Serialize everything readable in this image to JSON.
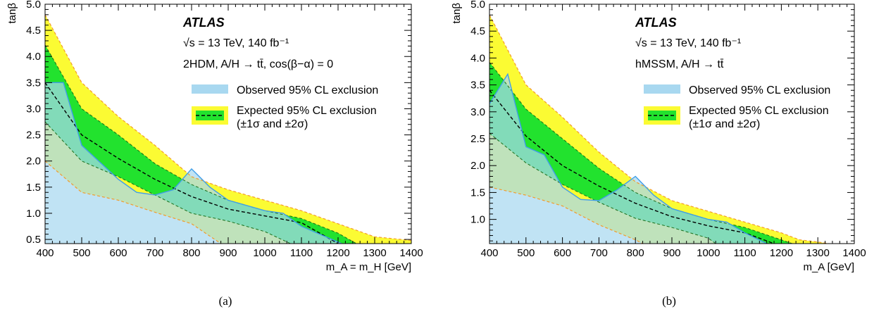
{
  "colors": {
    "observed": "#a8d8f0",
    "observed_line": "#3f9ee8",
    "sigma1": "#22e22e",
    "sigma2": "#fbfb33",
    "sigma2_edge": "#f39a2c",
    "expected_line": "#000000"
  },
  "chart_data": [
    {
      "type": "area",
      "panel_label": "(a)",
      "ylabel": "tanβ",
      "xlabel": "m_A = m_H [GeV]",
      "xlim": [
        400,
        1400
      ],
      "ylim": [
        0.42,
        5.0
      ],
      "xticks": [
        400,
        500,
        600,
        700,
        800,
        900,
        1000,
        1100,
        1200,
        1300,
        1400
      ],
      "yticks": [
        0.5,
        1.0,
        1.5,
        2.0,
        2.5,
        3.0,
        3.5,
        4.0,
        4.5,
        5.0
      ],
      "experiment": "ATLAS",
      "energy_text": "√s = 13 TeV, 140 fb⁻¹",
      "model_text": "2HDM, A/H → tt̄, cos(β−α) = 0",
      "legend": [
        "Observed 95% CL exclusion",
        "Expected 95% CL exclusion",
        "(±1σ and ±2σ)"
      ],
      "plus2sigma": {
        "x": [
          400,
          500,
          600,
          700,
          800,
          900,
          1000,
          1100,
          1200,
          1300,
          1400
        ],
        "y": [
          4.8,
          3.5,
          2.85,
          2.3,
          1.7,
          1.45,
          1.25,
          1.05,
          0.8,
          0.55,
          0.48
        ]
      },
      "plus1sigma": {
        "x": [
          400,
          500,
          600,
          700,
          800,
          900,
          1000,
          1100,
          1200,
          1250
        ],
        "y": [
          4.22,
          3.0,
          2.5,
          1.95,
          1.55,
          1.25,
          1.05,
          0.9,
          0.62,
          0.42
        ]
      },
      "expected": {
        "x": [
          400,
          500,
          600,
          700,
          800,
          900,
          1000,
          1100,
          1200
        ],
        "y": [
          3.5,
          2.5,
          2.05,
          1.65,
          1.32,
          1.08,
          0.95,
          0.82,
          0.42
        ]
      },
      "minus1sigma": {
        "x": [
          400,
          500,
          600,
          700,
          800,
          900,
          1000,
          1070
        ],
        "y": [
          2.75,
          2.0,
          1.7,
          1.35,
          1.0,
          0.85,
          0.65,
          0.42
        ]
      },
      "minus2sigma": {
        "x": [
          400,
          500,
          600,
          700,
          800,
          880
        ],
        "y": [
          2.0,
          1.4,
          1.25,
          1.02,
          0.8,
          0.42
        ]
      },
      "observed": {
        "x": [
          400,
          450,
          500,
          600,
          650,
          700,
          750,
          800,
          850,
          900,
          1000,
          1050,
          1100,
          1150,
          1210
        ],
        "y": [
          3.5,
          3.5,
          2.3,
          1.65,
          1.4,
          1.35,
          1.45,
          1.85,
          1.5,
          1.25,
          1.05,
          1.0,
          0.75,
          0.6,
          0.42
        ]
      }
    },
    {
      "type": "area",
      "panel_label": "(b)",
      "ylabel": "tanβ",
      "xlabel": "m_A [GeV]",
      "xlim": [
        400,
        1400
      ],
      "ylim": [
        0.55,
        5.0
      ],
      "xticks": [
        400,
        500,
        600,
        700,
        800,
        900,
        1000,
        1100,
        1200,
        1300,
        1400
      ],
      "yticks": [
        1.0,
        1.5,
        2.0,
        2.5,
        3.0,
        3.5,
        4.0,
        4.5,
        5.0
      ],
      "experiment": "ATLAS",
      "energy_text": "√s = 13 TeV, 140 fb⁻¹",
      "model_text": "hMSSM, A/H → tt̄",
      "legend": [
        "Observed 95% CL exclusion",
        "Expected 95% CL exclusion",
        "(±1σ and ±2σ)"
      ],
      "plus2sigma": {
        "x": [
          400,
          500,
          600,
          700,
          800,
          900,
          1000,
          1100,
          1200,
          1250,
          1300,
          1330
        ],
        "y": [
          4.8,
          3.5,
          2.9,
          2.25,
          1.7,
          1.35,
          1.15,
          0.95,
          0.75,
          0.62,
          0.58,
          0.55
        ]
      },
      "plus1sigma": {
        "x": [
          400,
          500,
          600,
          700,
          800,
          900,
          1000,
          1100,
          1200,
          1230
        ],
        "y": [
          3.92,
          3.05,
          2.5,
          1.95,
          1.5,
          1.2,
          1.0,
          0.85,
          0.62,
          0.55
        ]
      },
      "expected": {
        "x": [
          400,
          500,
          600,
          700,
          800,
          900,
          1000,
          1100,
          1180
        ],
        "y": [
          3.4,
          2.55,
          2.0,
          1.62,
          1.3,
          1.05,
          0.88,
          0.75,
          0.55
        ]
      },
      "minus1sigma": {
        "x": [
          400,
          500,
          600,
          700,
          800,
          900,
          1000,
          1020
        ],
        "y": [
          2.6,
          2.05,
          1.65,
          1.32,
          1.02,
          0.85,
          0.65,
          0.55
        ]
      },
      "minus2sigma": {
        "x": [
          400,
          500,
          600,
          700,
          800,
          820
        ],
        "y": [
          1.6,
          1.45,
          1.25,
          0.9,
          0.62,
          0.55
        ]
      },
      "observed": {
        "x": [
          400,
          450,
          500,
          550,
          600,
          650,
          700,
          750,
          800,
          850,
          900,
          1000,
          1050,
          1100,
          1160
        ],
        "y": [
          3.15,
          3.7,
          2.35,
          2.2,
          1.6,
          1.37,
          1.35,
          1.55,
          1.8,
          1.45,
          1.2,
          1.0,
          0.95,
          0.75,
          0.55
        ]
      }
    }
  ]
}
